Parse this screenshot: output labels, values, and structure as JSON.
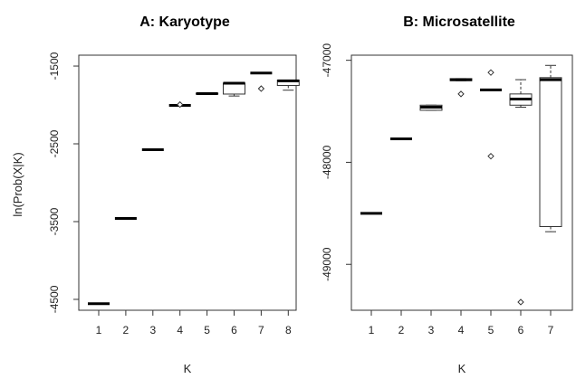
{
  "chart_data": [
    {
      "type": "boxplot",
      "title": "A: Karyotype",
      "xlabel": "K",
      "ylabel": "ln(Prob(X|K)",
      "ylim": [
        -4640,
        -1360
      ],
      "y_ticks": [
        "-1500",
        "-2500",
        "-3500",
        "-4500"
      ],
      "y_tick_values": [
        -1500,
        -2500,
        -3500,
        -4500
      ],
      "categories": [
        "1",
        "2",
        "3",
        "4",
        "5",
        "6",
        "7",
        "8"
      ],
      "boxes": [
        {
          "k": "1",
          "min": -4555,
          "q1": -4555,
          "median": -4555,
          "q3": -4555,
          "max": -4555,
          "outliers": []
        },
        {
          "k": "2",
          "min": -3460,
          "q1": -3460,
          "median": -3460,
          "q3": -3460,
          "max": -3460,
          "outliers": []
        },
        {
          "k": "3",
          "min": -2575,
          "q1": -2575,
          "median": -2575,
          "q3": -2575,
          "max": -2575,
          "outliers": []
        },
        {
          "k": "4",
          "min": -2005,
          "q1": -2005,
          "median": -2005,
          "q3": -2005,
          "max": -2005,
          "outliers": [
            -1995
          ]
        },
        {
          "k": "5",
          "min": -1865,
          "q1": -1860,
          "median": -1855,
          "q3": -1850,
          "max": -1845,
          "outliers": []
        },
        {
          "k": "6",
          "min": -1885,
          "q1": -1860,
          "median": -1720,
          "q3": -1720,
          "max": -1720,
          "outliers": []
        },
        {
          "k": "7",
          "min": -1590,
          "q1": -1590,
          "median": -1590,
          "q3": -1590,
          "max": -1590,
          "outliers": [
            -1790
          ]
        },
        {
          "k": "8",
          "min": -1810,
          "q1": -1750,
          "median": -1690,
          "q3": -1680,
          "max": -1680,
          "outliers": []
        }
      ]
    },
    {
      "type": "boxplot",
      "title": "B: Microsatellite",
      "xlabel": "K",
      "ylabel": "",
      "ylim": [
        -49450,
        -46950
      ],
      "y_ticks": [
        "-47000",
        "-48000",
        "-49000"
      ],
      "y_tick_values": [
        -47000,
        -48000,
        -49000
      ],
      "categories": [
        "1",
        "2",
        "3",
        "4",
        "5",
        "6",
        "7"
      ],
      "boxes": [
        {
          "k": "1",
          "min": -48500,
          "q1": -48500,
          "median": -48500,
          "q3": -48500,
          "max": -48500,
          "outliers": []
        },
        {
          "k": "2",
          "min": -47770,
          "q1": -47770,
          "median": -47770,
          "q3": -47770,
          "max": -47770,
          "outliers": []
        },
        {
          "k": "3",
          "min": -47490,
          "q1": -47490,
          "median": -47460,
          "q3": -47440,
          "max": -47440,
          "outliers": []
        },
        {
          "k": "4",
          "min": -47200,
          "q1": -47200,
          "median": -47190,
          "q3": -47180,
          "max": -47180,
          "outliers": [
            -47330
          ]
        },
        {
          "k": "5",
          "min": -47290,
          "q1": -47290,
          "median": -47290,
          "q3": -47290,
          "max": -47290,
          "outliers": [
            -47120,
            -47940
          ]
        },
        {
          "k": "6",
          "min": -47460,
          "q1": -47440,
          "median": -47380,
          "q3": -47330,
          "max": -47190,
          "outliers": [
            -49370
          ]
        },
        {
          "k": "7",
          "min": -48680,
          "q1": -48630,
          "median": -47190,
          "q3": -47170,
          "max": -47050,
          "outliers": []
        }
      ]
    }
  ]
}
